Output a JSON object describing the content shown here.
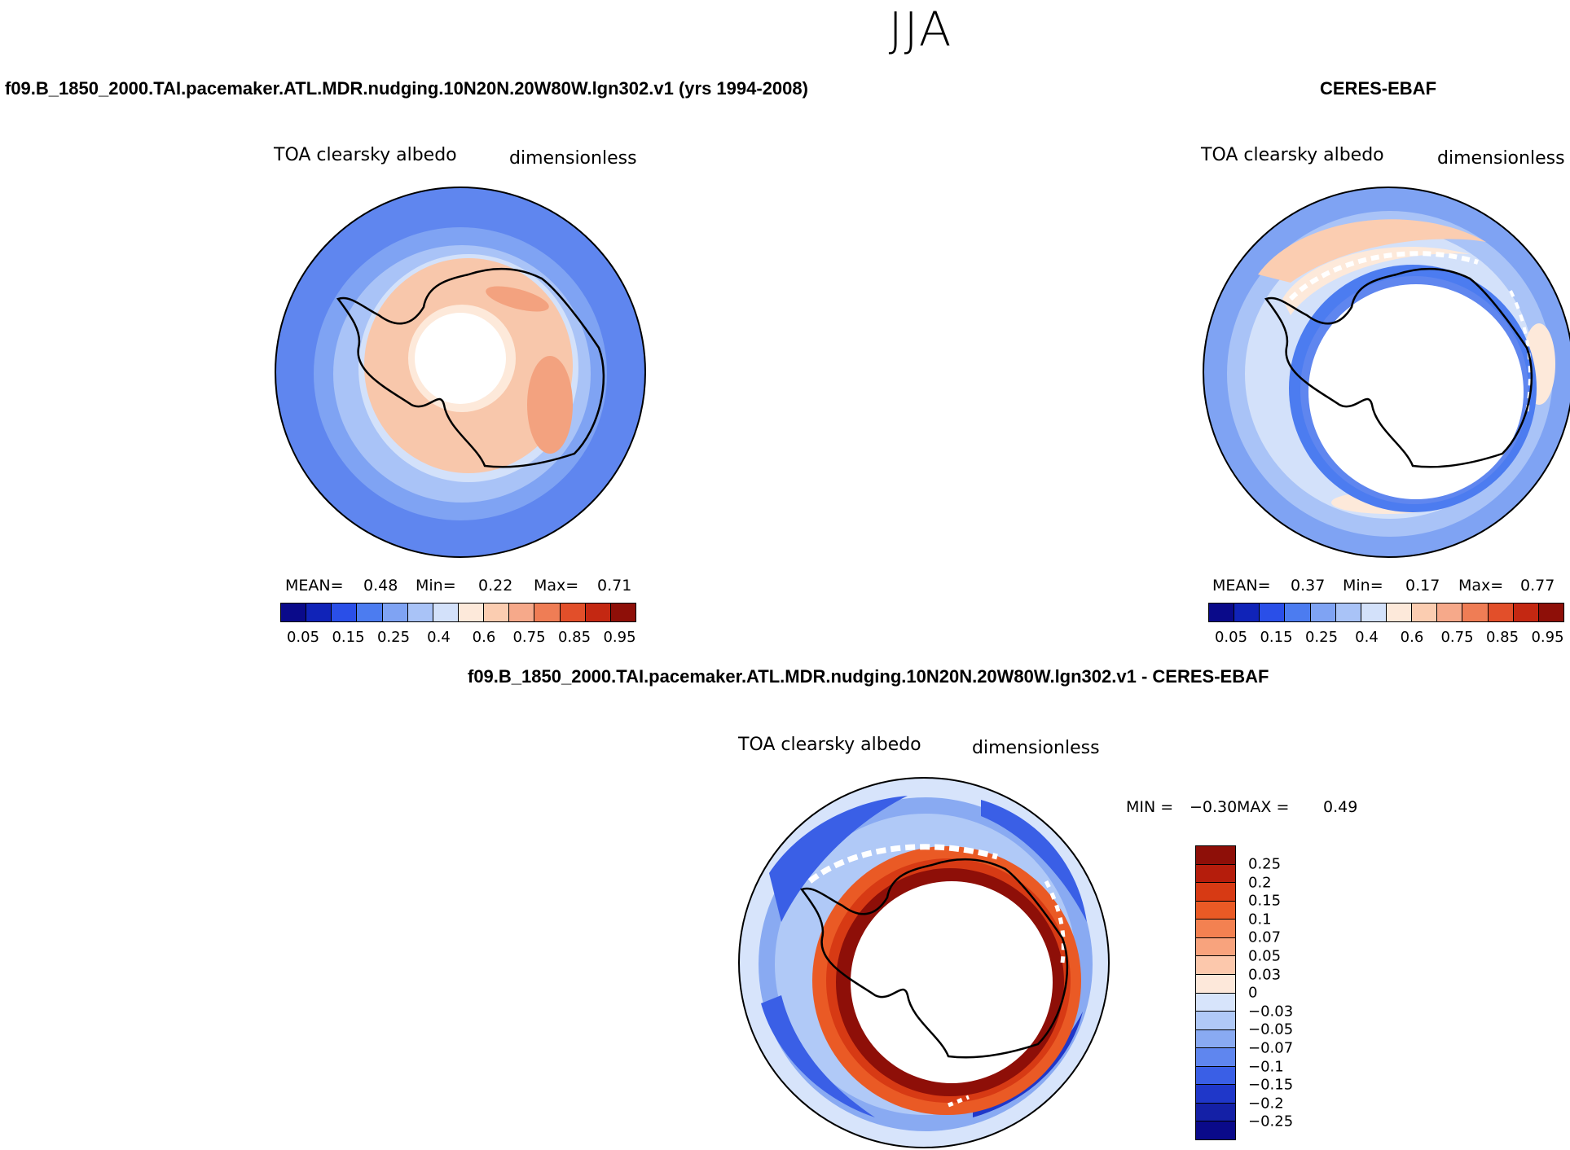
{
  "season": "JJA",
  "panels": {
    "model": {
      "header": "f09.B_1850_2000.TAI.pacemaker.ATL.MDR.nudging.10N20N.20W80W.lgn302.v1 (yrs 1994-2008)",
      "variable": "TOA clearsky albedo",
      "units": "dimensionless",
      "stats": {
        "mean_label": "MEAN=",
        "mean": "0.48",
        "min_label": "Min=",
        "min": "0.22",
        "max_label": "Max=",
        "max": "0.71"
      }
    },
    "obs": {
      "header": "CERES-EBAF",
      "variable": "TOA clearsky albedo",
      "units": "dimensionless",
      "stats": {
        "mean_label": "MEAN=",
        "mean": "0.37",
        "min_label": "Min=",
        "min": "0.17",
        "max_label": "Max=",
        "max": "0.77"
      }
    },
    "diff": {
      "header": "f09.B_1850_2000.TAI.pacemaker.ATL.MDR.nudging.10N20N.20W80W.lgn302.v1 - CERES-EBAF",
      "variable": "TOA clearsky albedo",
      "units": "dimensionless",
      "stats": {
        "min_label": "MIN =",
        "min": "−0.30",
        "max_label": "MAX =",
        "max": "0.49"
      }
    }
  },
  "colorbar_abs": {
    "labels": [
      "0.05",
      "0.15",
      "0.25",
      "0.4",
      "0.6",
      "0.75",
      "0.85",
      "0.95"
    ],
    "colors": [
      "#0a0a8a",
      "#1023b8",
      "#2a4fe8",
      "#4c7cf0",
      "#7fa3f3",
      "#a9c3f7",
      "#d3e1fa",
      "#fde9da",
      "#fbcdb1",
      "#f6a98a",
      "#ef7d55",
      "#e24f2a",
      "#c42812",
      "#8e0f08"
    ]
  },
  "colorbar_diff": {
    "labels": [
      "0.25",
      "0.2",
      "0.15",
      "0.1",
      "0.07",
      "0.05",
      "0.03",
      "0",
      "−0.03",
      "−0.05",
      "−0.07",
      "−0.1",
      "−0.15",
      "−0.2",
      "−0.25"
    ],
    "colors": [
      "#8e0f08",
      "#b51d0c",
      "#d73a14",
      "#ea5a25",
      "#f38151",
      "#f8a37d",
      "#fcc8ac",
      "#fde8da",
      "#d7e4fb",
      "#b0c9f7",
      "#89aaf2",
      "#5f86ef",
      "#3a5fe6",
      "#1f37c9",
      "#1420a6",
      "#0a0a8a"
    ]
  }
}
